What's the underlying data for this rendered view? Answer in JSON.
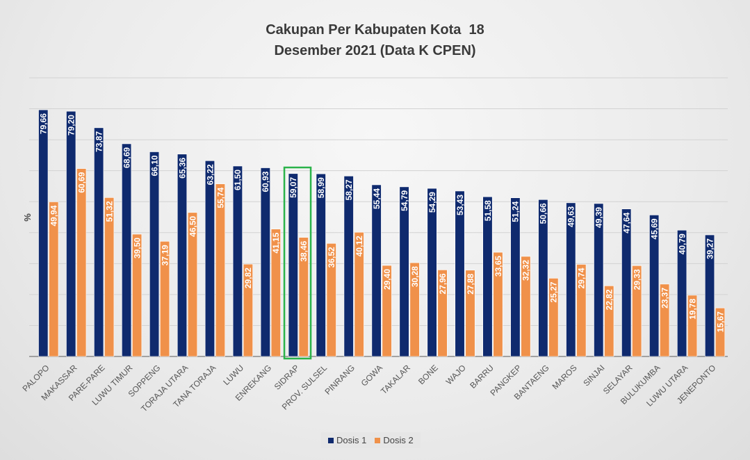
{
  "chart_data": {
    "type": "bar",
    "title": "Cakupan Per Kabupaten Kota  18\nDesember 2021 (Data K CPEN)",
    "ylabel": "%",
    "xlabel": "",
    "ylim": [
      0,
      90
    ],
    "grid": true,
    "legend_position": "bottom",
    "categories": [
      "PALOPO",
      "MAKASSAR",
      "PARE-PARE",
      "LUWU TIMUR",
      "SOPPENG",
      "TORAJA UTARA",
      "TANA TORAJA",
      "LUWU",
      "ENREKANG",
      "SIDRAP",
      "PROV. SULSEL",
      "PINRANG",
      "GOWA",
      "TAKALAR",
      "BONE",
      "WAJO",
      "BARRU",
      "PANGKEP",
      "BANTAENG",
      "MAROS",
      "SINJAI",
      "SELAYAR",
      "BULUKUMBA",
      "LUWU UTARA",
      "JENEPONTO"
    ],
    "series": [
      {
        "name": "Dosis 1",
        "color": "#0f2a6e",
        "values": [
          79.66,
          79.2,
          73.87,
          68.69,
          66.1,
          65.36,
          63.22,
          61.5,
          60.93,
          59.07,
          58.99,
          58.27,
          55.44,
          54.79,
          54.29,
          53.43,
          51.58,
          51.24,
          50.66,
          49.63,
          49.39,
          47.64,
          45.69,
          40.79,
          39.27
        ],
        "labels": [
          "79,66",
          "79,20",
          "73,87",
          "68,69",
          "66,10",
          "65,36",
          "63,22",
          "61,50",
          "60,93",
          "59,07",
          "58,99",
          "58,27",
          "55,44",
          "54,79",
          "54,29",
          "53,43",
          "51,58",
          "51,24",
          "50,66",
          "49,63",
          "49,39",
          "47,64",
          "45,69",
          "40,79",
          "39,27"
        ]
      },
      {
        "name": "Dosis 2",
        "color": "#f0914a",
        "values": [
          49.94,
          60.69,
          51.32,
          39.5,
          37.19,
          46.5,
          55.74,
          29.82,
          41.15,
          38.46,
          36.52,
          40.12,
          29.4,
          30.28,
          27.96,
          27.88,
          33.65,
          32.32,
          25.27,
          29.74,
          22.82,
          29.33,
          23.37,
          19.78,
          15.67
        ],
        "labels": [
          "49,94",
          "60,69",
          "51,32",
          "39,50",
          "37,19",
          "46,50",
          "55,74",
          "29,82",
          "41,15",
          "38,46",
          "36,52",
          "40,12",
          "29,40",
          "30,28",
          "27,96",
          "27,88",
          "33,65",
          "32,32",
          "25,27",
          "29,74",
          "22,82",
          "29,33",
          "23,37",
          "19,78",
          "15,67"
        ]
      }
    ],
    "highlight": {
      "category": "SIDRAP",
      "color": "#2bb34a"
    }
  }
}
